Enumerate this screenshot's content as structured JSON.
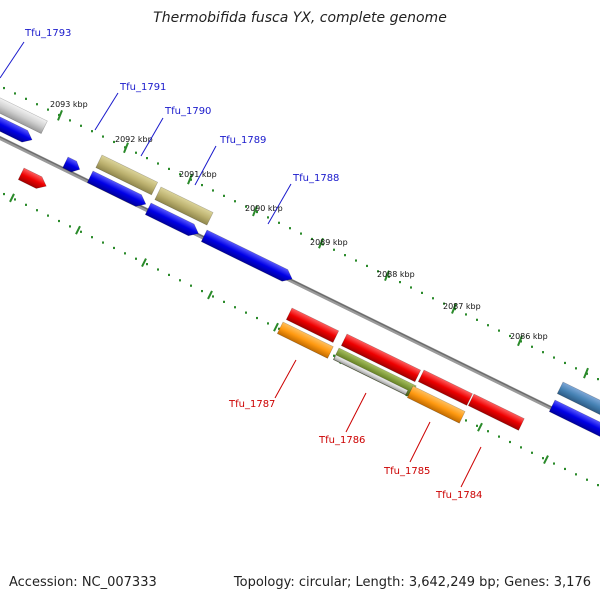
{
  "title": "Thermobifida fusca YX, complete genome",
  "footer": {
    "accession": "Accession: NC_007333",
    "summary": "Topology: circular; Length: 3,642,249 bp; Genes: 3,176"
  },
  "colors": {
    "top_label": "#1a1acc",
    "bottom_label": "#cc0000",
    "backbone": "#808080",
    "dots": "#2a8a2a"
  },
  "scale_labels": [
    "2093 kbp",
    "2092 kbp",
    "2091 kbp",
    "2090 kbp",
    "2089 kbp",
    "2088 kbp",
    "2087 kbp",
    "2086 kbp"
  ],
  "gene_labels": {
    "top": [
      "Tfu_1793",
      "Tfu_1791",
      "Tfu_1790",
      "Tfu_1789",
      "Tfu_1788"
    ],
    "bottom": [
      "Tfu_1787",
      "Tfu_1786",
      "Tfu_1785",
      "Tfu_1784"
    ]
  }
}
